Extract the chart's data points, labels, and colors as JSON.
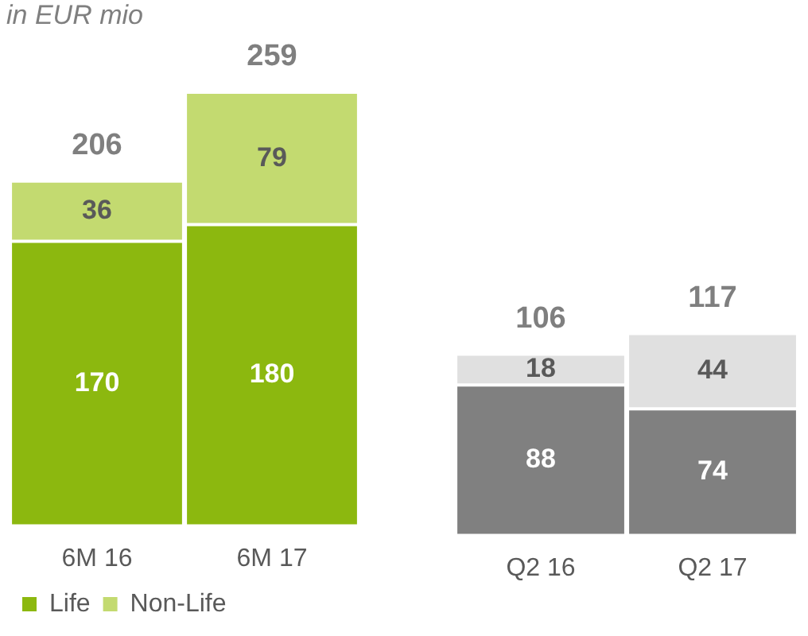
{
  "chart_data": [
    {
      "type": "bar",
      "title": "in EUR mio",
      "categories": [
        "6M 16",
        "6M 17"
      ],
      "stacked": true,
      "data_labels": true,
      "totals": [
        "206",
        "259"
      ],
      "legend": "bottom left",
      "series": [
        {
          "name": "Life",
          "color": "#8cb80f",
          "values": [
            170,
            180
          ]
        },
        {
          "name": "Non-Life",
          "color": "#c3da70",
          "values": [
            36,
            79
          ]
        }
      ]
    },
    {
      "type": "bar",
      "categories": [
        "Q2 16",
        "Q2 17"
      ],
      "stacked": true,
      "data_labels": true,
      "totals": [
        "106",
        "117"
      ],
      "series": [
        {
          "color": "#808080",
          "values": [
            88,
            74
          ]
        },
        {
          "color": "#e0e0e0",
          "values": [
            18,
            44
          ]
        }
      ]
    }
  ]
}
